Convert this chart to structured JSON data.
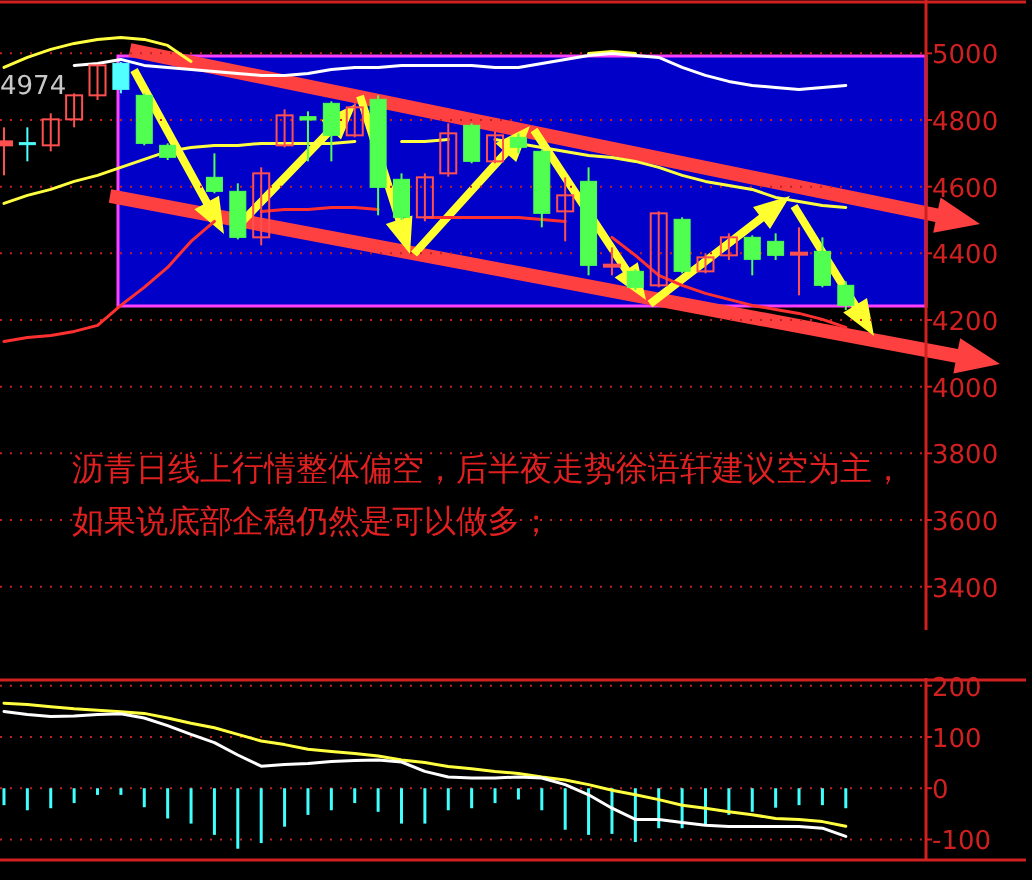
{
  "chart_data": [
    {
      "type": "candlestick",
      "categories": [
        null,
        null,
        null,
        null,
        null,
        null,
        null,
        null,
        null,
        null,
        null,
        null,
        null,
        null,
        null,
        null,
        null,
        null,
        null,
        null,
        null,
        null,
        null,
        null,
        null,
        null,
        null,
        null,
        null,
        null,
        null,
        null,
        null,
        null,
        null,
        null,
        null
      ],
      "ohlc": [
        [
          4724,
          4778,
          4634,
          4736
        ],
        [
          4732,
          4778,
          4676,
          4728
        ],
        [
          4724,
          4820,
          4706,
          4802
        ],
        [
          4802,
          4880,
          4778,
          4874
        ],
        [
          4874,
          4966,
          4860,
          4964
        ],
        [
          4970,
          4974,
          4880,
          4892
        ],
        [
          4874,
          4880,
          4724,
          4730
        ],
        [
          4724,
          4730,
          4680,
          4688
        ],
        null,
        [
          4628,
          4700,
          4580,
          4586
        ],
        [
          4586,
          4610,
          4442,
          4448
        ],
        [
          4448,
          4658,
          4424,
          4640
        ],
        [
          4724,
          4832,
          4718,
          4814
        ],
        [
          4810,
          4826,
          4676,
          4800
        ],
        [
          4850,
          4856,
          4676,
          4754
        ],
        [
          4754,
          4850,
          4748,
          4838
        ],
        [
          4862,
          4874,
          4514,
          4598
        ],
        [
          4622,
          4640,
          4500,
          4508
        ],
        [
          4508,
          4640,
          4496,
          4628
        ],
        [
          4640,
          4790,
          4630,
          4760
        ],
        [
          4784,
          4790,
          4670,
          4676
        ],
        [
          4676,
          4766,
          4670,
          4754
        ],
        [
          4748,
          4760,
          4700,
          4718
        ],
        [
          4706,
          4712,
          4478,
          4520
        ],
        [
          4526,
          4628,
          4436,
          4574
        ],
        [
          4616,
          4658,
          4334,
          4364
        ],
        [
          4362,
          4418,
          4334,
          4366
        ],
        [
          4346,
          4352,
          4290,
          4298
        ],
        [
          4304,
          4526,
          4298,
          4520
        ],
        [
          4502,
          4508,
          4340,
          4346
        ],
        [
          4346,
          4400,
          4340,
          4388
        ],
        [
          4394,
          4460,
          4380,
          4448
        ],
        [
          4448,
          4454,
          4334,
          4382
        ],
        [
          4436,
          4460,
          4380,
          4394
        ],
        [
          4398,
          4478,
          4274,
          4402
        ],
        [
          4406,
          4448,
          4298,
          4304
        ],
        [
          4304,
          4316,
          4230,
          4244
        ]
      ],
      "colors": [
        "#ff5050",
        "#50ffff",
        "#ff5050",
        "#ff5050",
        "#ff5050",
        "#50ffff",
        "#50ff50",
        "#50ff50",
        null,
        "#50ff50",
        "#50ff50",
        "#ff5050",
        "#ff5050",
        "#50ff50",
        "#50ff50",
        "#ff5050",
        "#50ff50",
        "#50ff50",
        "#ff5050",
        "#ff5050",
        "#50ff50",
        "#ff5050",
        "#50ff50",
        "#50ff50",
        "#ff5050",
        "#50ff50",
        "#ff5050",
        "#50ff50",
        "#ff5050",
        "#50ff50",
        "#ff5050",
        "#ff5050",
        "#50ff50",
        "#50ff50",
        "#ff5050",
        "#50ff50",
        "#50ff50"
      ],
      "series": [
        {
          "type": "line",
          "color": "#ffff40",
          "values": [
            4958,
            4988,
            5012,
            5030,
            5042,
            5048,
            5042,
            5024,
            4976,
            null,
            null,
            null,
            null,
            null,
            null,
            null,
            null,
            null,
            null,
            null,
            null,
            null,
            null,
            null,
            null,
            5000,
            5006,
            5000,
            null,
            null,
            null,
            null,
            null,
            null,
            null,
            null,
            null
          ]
        },
        {
          "type": "line",
          "color": "#ffffff",
          "values": [
            null,
            null,
            null,
            4964,
            4970,
            4982,
            4964,
            4958,
            4952,
            4946,
            4940,
            4934,
            4934,
            4940,
            4952,
            4958,
            4958,
            4964,
            4964,
            4964,
            4964,
            4958,
            4958,
            4970,
            4982,
            4994,
            5000,
            4994,
            4988,
            4958,
            4934,
            4916,
            4904,
            4898,
            4892,
            4898,
            4904
          ]
        },
        {
          "type": "line",
          "color": "#ffff40",
          "values": [
            4550,
            4574,
            4592,
            4616,
            4634,
            4658,
            4682,
            4706,
            4718,
            4724,
            4724,
            4730,
            4730,
            4730,
            4730,
            4736,
            null,
            4736,
            4736,
            4742,
            null,
            4742,
            4730,
            4718,
            4706,
            4694,
            4688,
            4676,
            4658,
            4634,
            4616,
            4604,
            4592,
            4568,
            4556,
            4544,
            4538
          ]
        },
        {
          "type": "line",
          "color": "#ff3030",
          "values": [
            4136,
            4148,
            4154,
            4166,
            4184,
            4244,
            4298,
            4358,
            4436,
            4496,
            null,
            4526,
            4532,
            4532,
            4538,
            4538,
            4532,
            null,
            4508,
            4508,
            4508,
            4508,
            4508,
            4502,
            4496,
            null,
            4448,
            4394,
            4334,
            4304,
            4280,
            4262,
            4244,
            4232,
            4220,
            4202,
            4178
          ]
        }
      ],
      "ylim": [
        3270,
        5160
      ],
      "yticks": [
        3400,
        3600,
        3800,
        4000,
        4200,
        4400,
        4600,
        4800,
        5000
      ],
      "grid": "y",
      "tick_labels": "y",
      "annotations": [
        "沥青日线上行情整体偏空，后半夜走势徐语轩建议空为主，如果说底部企稳仍然是可以做多；",
        {
          "text": "4974",
          "y": 4974
        }
      ]
    },
    {
      "type": "bar",
      "categories": [
        null,
        null,
        null,
        null,
        null,
        null,
        null,
        null,
        null,
        null,
        null,
        null,
        null,
        null,
        null,
        null,
        null,
        null,
        null,
        null,
        null,
        null,
        null,
        null,
        null,
        null,
        null,
        null,
        null,
        null,
        null,
        null,
        null,
        null,
        null,
        null,
        null
      ],
      "series": [
        {
          "color": "#40ffff",
          "values": [
            -33,
            -43,
            -39,
            -29,
            -13,
            -13,
            -37,
            -59,
            -69,
            -91,
            -118,
            -107,
            -75,
            -52,
            -43,
            -29,
            -46,
            -69,
            -69,
            -43,
            -39,
            -29,
            -22,
            -43,
            -81,
            -91,
            -89,
            -105,
            -78,
            -78,
            -72,
            -52,
            -46,
            -38,
            -33,
            -33,
            -39
          ]
        },
        {
          "type": "line",
          "color": "#ffff40",
          "values": [
            166,
            163,
            159,
            155,
            152,
            149,
            146,
            137,
            127,
            118,
            105,
            92,
            85,
            76,
            72,
            68,
            63,
            55,
            50,
            42,
            38,
            33,
            29,
            22,
            16,
            7,
            -4,
            -13,
            -22,
            -33,
            -39,
            -46,
            -52,
            -59,
            -61,
            -65,
            -74
          ]
        },
        {
          "type": "line",
          "color": "#ffffff",
          "values": [
            150,
            144,
            140,
            141,
            144,
            145,
            137,
            122,
            105,
            89,
            65,
            43,
            46,
            48,
            52,
            54,
            55,
            51,
            33,
            22,
            20,
            20,
            22,
            20,
            7,
            -13,
            -39,
            -61,
            -61,
            -67,
            -72,
            -75,
            -75,
            -75,
            -75,
            -78,
            -94
          ]
        }
      ],
      "ylim": [
        -140,
        215
      ],
      "yticks": [
        -100,
        0,
        100,
        200
      ],
      "grid": "y",
      "tick_labels": "y"
    }
  ]
}
